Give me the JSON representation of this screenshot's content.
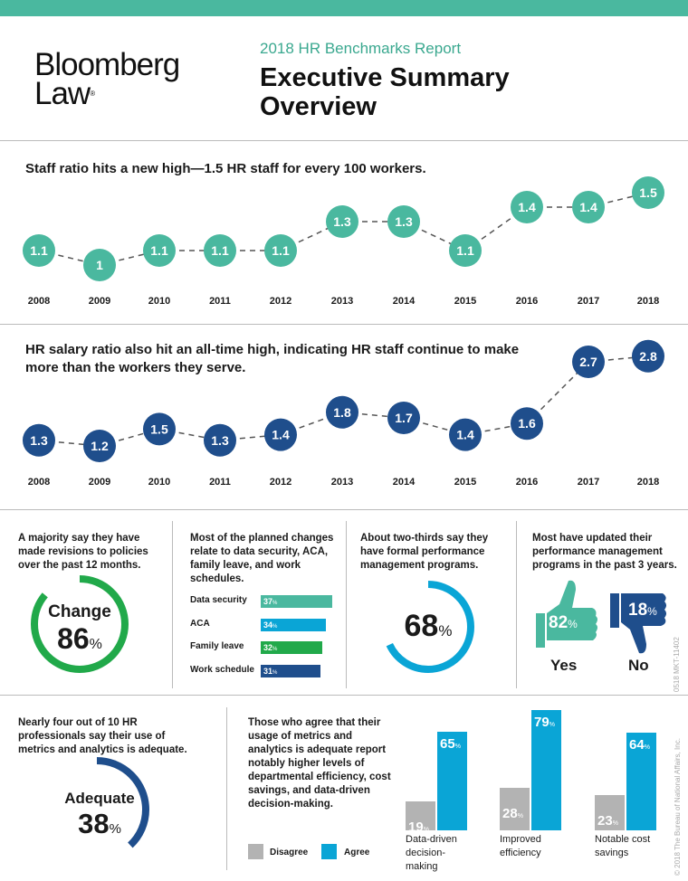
{
  "header": {
    "logo_line1": "Bloomberg",
    "logo_line2": "Law",
    "subtitle": "2018 HR Benchmarks Report",
    "title_line1": "Executive Summary",
    "title_line2": "Overview"
  },
  "colors": {
    "teal": "#4ab89f",
    "navy": "#1f4e8c",
    "green": "#21a94a",
    "cyan": "#0aa5d6",
    "gray": "#b3b3b3"
  },
  "chart_data": [
    {
      "type": "line",
      "title": "Staff ratio hits a new high—1.5 HR staff for every 100 workers.",
      "x": [
        "2008",
        "2009",
        "2010",
        "2011",
        "2012",
        "2013",
        "2014",
        "2015",
        "2016",
        "2017",
        "2018"
      ],
      "values": [
        1.1,
        1.0,
        1.1,
        1.1,
        1.1,
        1.3,
        1.3,
        1.1,
        1.4,
        1.4,
        1.5
      ],
      "color": "#4ab89f"
    },
    {
      "type": "line",
      "title": "HR salary ratio also hit an all-time high, indicating HR staff continue to make more than the workers they serve.",
      "x": [
        "2008",
        "2009",
        "2010",
        "2011",
        "2012",
        "2013",
        "2014",
        "2015",
        "2016",
        "2017",
        "2018"
      ],
      "values": [
        1.3,
        1.2,
        1.5,
        1.3,
        1.4,
        1.8,
        1.7,
        1.4,
        1.6,
        2.7,
        2.8
      ],
      "color": "#1f4e8c"
    },
    {
      "type": "bar",
      "title": "Most of the planned changes relate to data security, ACA, family leave, and work schedules.",
      "categories": [
        "Data security",
        "ACA",
        "Family leave",
        "Work schedule"
      ],
      "values": [
        37,
        34,
        32,
        31
      ],
      "colors": [
        "#4ab89f",
        "#0aa5d6",
        "#21a94a",
        "#1f4e8c"
      ]
    },
    {
      "type": "bar",
      "title": "Those who agree that their usage of metrics and analytics is adequate report notably higher levels of departmental efficiency, cost savings, and data-driven decision-making.",
      "categories": [
        "Data-driven decision-making",
        "Improved efficiency",
        "Notable cost savings"
      ],
      "series": [
        {
          "name": "Disagree",
          "values": [
            19,
            28,
            23
          ]
        },
        {
          "name": "Agree",
          "values": [
            65,
            79,
            64
          ]
        }
      ]
    }
  ],
  "panels": {
    "policies": {
      "text": "A majority say they have made revisions to policies over the past 12 months.",
      "label": "Change",
      "value": 86
    },
    "performance": {
      "text": "About two-thirds say they have formal performance management programs.",
      "value": 68
    },
    "updated": {
      "text": "Most have updated their performance management programs in the past 3 years.",
      "yes_label": "Yes",
      "yes_value": 82,
      "no_label": "No",
      "no_value": 18
    },
    "adequate": {
      "text": "Nearly four out of 10 HR professionals say their use of metrics and analytics is adequate.",
      "label": "Adequate",
      "value": 38
    }
  },
  "percent": "%",
  "side": {
    "code": "0518  MKT-11402",
    "copyright": "© 2018 The Bureau of National Affairs, Inc."
  }
}
